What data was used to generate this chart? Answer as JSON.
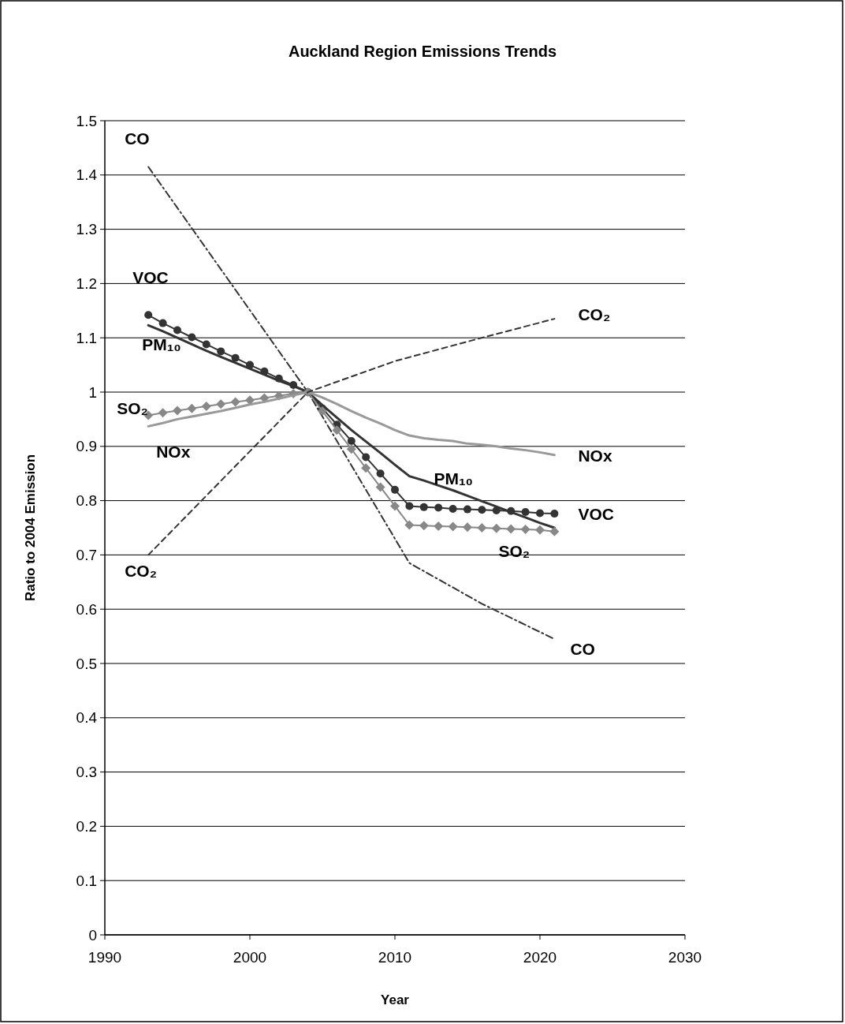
{
  "chart_data": {
    "type": "line",
    "title": "Auckland Region Emissions Trends",
    "xlabel": "Year",
    "ylabel": "Ratio to 2004 Emission",
    "xlim": [
      1990,
      2030
    ],
    "xticks": [
      1990,
      2000,
      2010,
      2020,
      2030
    ],
    "ylim": [
      0,
      1.5
    ],
    "yticks": [
      0,
      0.1,
      0.2,
      0.3,
      0.4,
      0.5,
      0.6,
      0.7,
      0.8,
      0.9,
      1,
      1.1,
      1.2,
      1.3,
      1.4,
      1.5
    ],
    "grid": "y",
    "series": [
      {
        "name": "CO",
        "color": "#333333",
        "line_style": "dashdot",
        "marker": "none",
        "x": [
          1993,
          2004,
          2011,
          2016,
          2021
        ],
        "values": [
          1.415,
          1.0,
          0.685,
          0.61,
          0.545
        ]
      },
      {
        "name": "VOC",
        "color": "#333333",
        "line_style": "solid",
        "marker": "circle",
        "x": [
          1993,
          1994,
          1995,
          1996,
          1997,
          1998,
          1999,
          2000,
          2001,
          2002,
          2003,
          2004,
          2005,
          2006,
          2007,
          2008,
          2009,
          2010,
          2011,
          2012,
          2013,
          2014,
          2015,
          2016,
          2017,
          2018,
          2019,
          2020,
          2021
        ],
        "values": [
          1.142,
          1.127,
          1.114,
          1.101,
          1.088,
          1.075,
          1.063,
          1.05,
          1.038,
          1.025,
          1.013,
          1.0,
          0.97,
          0.94,
          0.91,
          0.88,
          0.85,
          0.82,
          0.79,
          0.788,
          0.787,
          0.785,
          0.784,
          0.783,
          0.782,
          0.781,
          0.779,
          0.777,
          0.776
        ]
      },
      {
        "name": "PM₁₀",
        "color": "#333333",
        "line_style": "solid",
        "marker": "none",
        "x": [
          1993,
          1994,
          1995,
          1996,
          1997,
          1998,
          1999,
          2000,
          2001,
          2002,
          2003,
          2004,
          2005,
          2006,
          2007,
          2008,
          2009,
          2010,
          2011,
          2012,
          2013,
          2014,
          2015,
          2016,
          2017,
          2018,
          2019,
          2020,
          2021
        ],
        "values": [
          1.123,
          1.112,
          1.1,
          1.088,
          1.076,
          1.065,
          1.054,
          1.043,
          1.032,
          1.021,
          1.011,
          1.0,
          0.976,
          0.953,
          0.93,
          0.909,
          0.888,
          0.866,
          0.845,
          0.837,
          0.828,
          0.819,
          0.809,
          0.799,
          0.789,
          0.779,
          0.769,
          0.759,
          0.75
        ]
      },
      {
        "name": "SO₂",
        "color": "#888888",
        "line_style": "solid",
        "marker": "diamond",
        "x": [
          1993,
          1994,
          1995,
          1996,
          1997,
          1998,
          1999,
          2000,
          2001,
          2002,
          2003,
          2004,
          2005,
          2006,
          2007,
          2008,
          2009,
          2010,
          2011,
          2012,
          2013,
          2014,
          2015,
          2016,
          2017,
          2018,
          2019,
          2020,
          2021
        ],
        "values": [
          0.957,
          0.962,
          0.966,
          0.97,
          0.974,
          0.978,
          0.982,
          0.985,
          0.989,
          0.993,
          0.997,
          1.0,
          0.965,
          0.93,
          0.895,
          0.86,
          0.825,
          0.79,
          0.755,
          0.754,
          0.753,
          0.752,
          0.751,
          0.75,
          0.749,
          0.748,
          0.747,
          0.746,
          0.743
        ]
      },
      {
        "name": "NOx",
        "color": "#999999",
        "line_style": "solid",
        "marker": "none",
        "x": [
          1993,
          1994,
          1995,
          1996,
          1997,
          1998,
          1999,
          2000,
          2001,
          2002,
          2003,
          2004,
          2005,
          2006,
          2007,
          2008,
          2009,
          2010,
          2011,
          2012,
          2013,
          2014,
          2015,
          2016,
          2017,
          2018,
          2019,
          2020,
          2021
        ],
        "values": [
          0.937,
          0.943,
          0.95,
          0.955,
          0.96,
          0.965,
          0.971,
          0.977,
          0.982,
          0.988,
          0.994,
          1.0,
          0.99,
          0.978,
          0.965,
          0.953,
          0.942,
          0.93,
          0.92,
          0.915,
          0.912,
          0.91,
          0.905,
          0.903,
          0.9,
          0.896,
          0.893,
          0.889,
          0.884
        ]
      },
      {
        "name": "CO₂",
        "color": "#333333",
        "line_style": "dashed",
        "marker": "none",
        "x": [
          1993,
          2004,
          2010,
          2015,
          2021
        ],
        "values": [
          0.7,
          1.0,
          1.057,
          1.093,
          1.135
        ]
      }
    ]
  }
}
